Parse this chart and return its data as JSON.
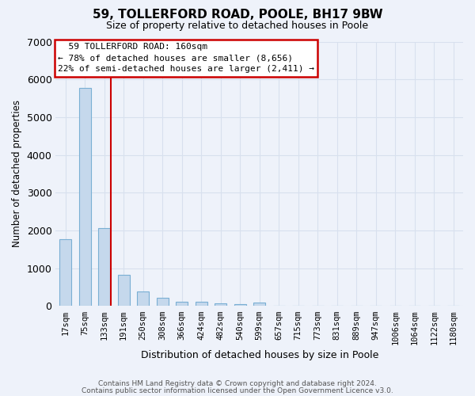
{
  "title": "59, TOLLERFORD ROAD, POOLE, BH17 9BW",
  "subtitle": "Size of property relative to detached houses in Poole",
  "xlabel": "Distribution of detached houses by size in Poole",
  "ylabel": "Number of detached properties",
  "annotation_line1": "59 TOLLERFORD ROAD: 160sqm",
  "annotation_line2": "← 78% of detached houses are smaller (8,656)",
  "annotation_line3": "22% of semi-detached houses are larger (2,411) →",
  "footer_line1": "Contains HM Land Registry data © Crown copyright and database right 2024.",
  "footer_line2": "Contains public sector information licensed under the Open Government Licence v3.0.",
  "bin_labels": [
    "17sqm",
    "75sqm",
    "133sqm",
    "191sqm",
    "250sqm",
    "308sqm",
    "366sqm",
    "424sqm",
    "482sqm",
    "540sqm",
    "599sqm",
    "657sqm",
    "715sqm",
    "773sqm",
    "831sqm",
    "889sqm",
    "947sqm",
    "1006sqm",
    "1064sqm",
    "1122sqm",
    "1180sqm"
  ],
  "bar_heights": [
    1780,
    5780,
    2060,
    820,
    380,
    220,
    110,
    110,
    70,
    60,
    100,
    0,
    0,
    0,
    0,
    0,
    0,
    0,
    0,
    0,
    0
  ],
  "bar_color": "#c5d8ec",
  "bar_edge_color": "#7aafd4",
  "redline_color": "#cc0000",
  "background_color": "#eef2fa",
  "grid_color": "#d8e0ee",
  "ylim": [
    0,
    7000
  ],
  "yticks": [
    0,
    1000,
    2000,
    3000,
    4000,
    5000,
    6000,
    7000
  ],
  "red_line_bin_index": 2,
  "bar_width": 0.6
}
